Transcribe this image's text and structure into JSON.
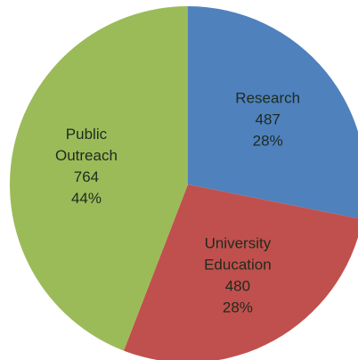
{
  "chart_data": {
    "type": "pie",
    "title": "",
    "start_angle_deg": 0,
    "direction": "clockwise",
    "slices": [
      {
        "label_lines": [
          "Research"
        ],
        "value": 487,
        "value_label": "487",
        "percent_label": "28%",
        "color": "#4f81bd"
      },
      {
        "label_lines": [
          "University",
          "Education"
        ],
        "value": 480,
        "value_label": "480",
        "percent_label": "28%",
        "color": "#c0504d"
      },
      {
        "label_lines": [
          "Public",
          "Outreach"
        ],
        "value": 764,
        "value_label": "764",
        "percent_label": "44%",
        "color": "#9bbb59"
      }
    ]
  }
}
